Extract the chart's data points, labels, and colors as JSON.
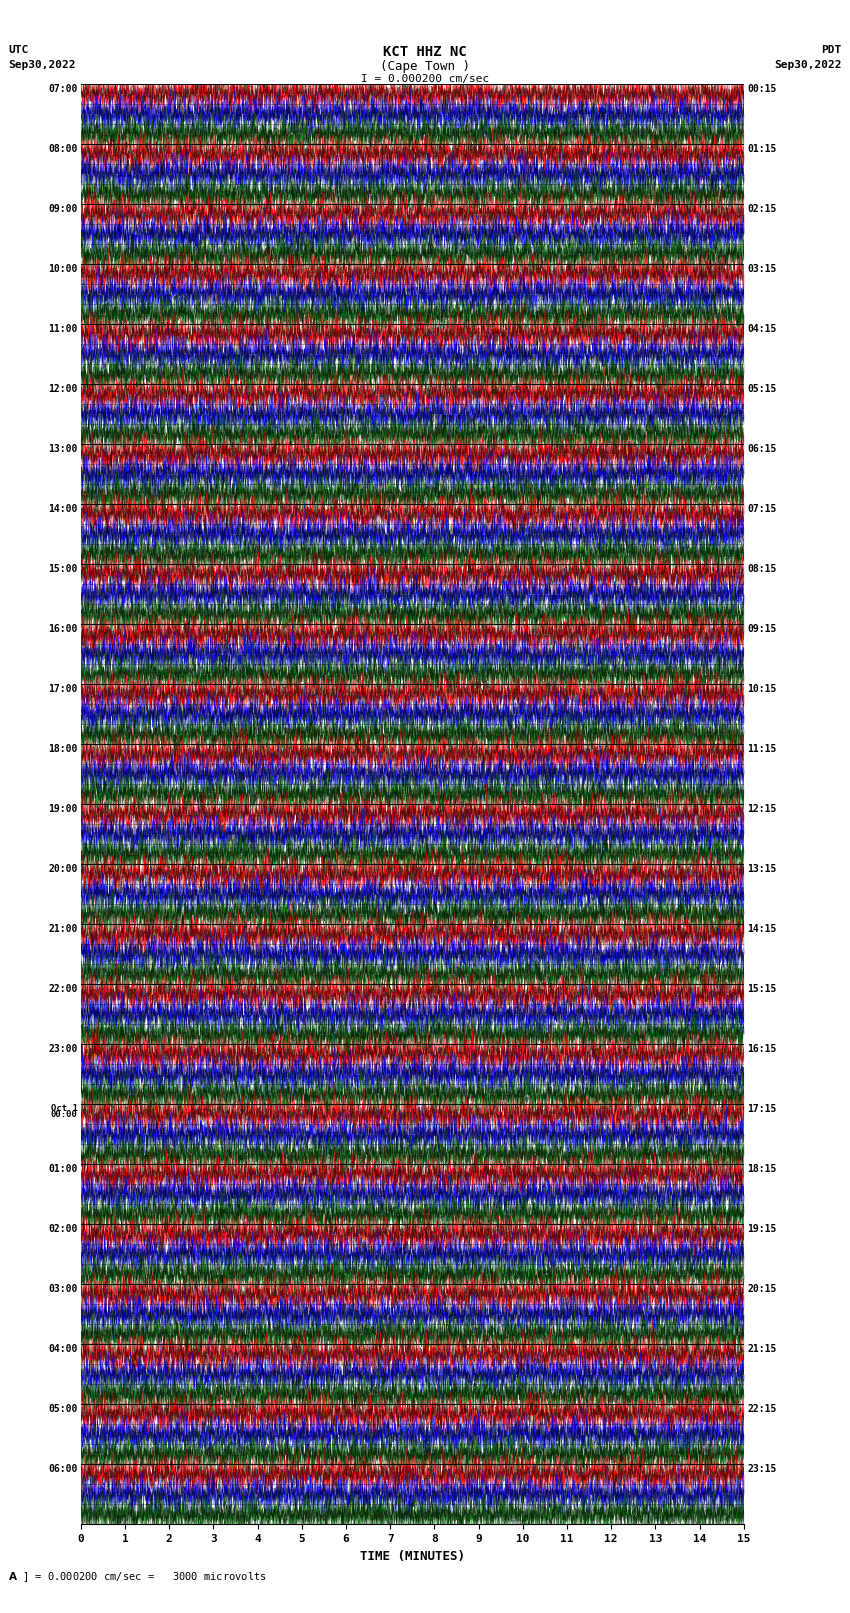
{
  "title_line1": "KCT HHZ NC",
  "title_line2": "(Cape Town )",
  "title_scale": "I = 0.000200 cm/sec",
  "left_label_line1": "UTC",
  "left_label_line2": "Sep30,2022",
  "right_label_line1": "PDT",
  "right_label_line2": "Sep30,2022",
  "bottom_label": "TIME (MINUTES)",
  "bottom_note": "= 0.000200 cm/sec =   3000 microvolts",
  "xlabel_ticks": [
    0,
    1,
    2,
    3,
    4,
    5,
    6,
    7,
    8,
    9,
    10,
    11,
    12,
    13,
    14,
    15
  ],
  "left_times": [
    "07:00",
    "08:00",
    "09:00",
    "10:00",
    "11:00",
    "12:00",
    "13:00",
    "14:00",
    "15:00",
    "16:00",
    "17:00",
    "18:00",
    "19:00",
    "20:00",
    "21:00",
    "22:00",
    "23:00",
    "Oct 1\n00:00",
    "01:00",
    "02:00",
    "03:00",
    "04:00",
    "05:00",
    "06:00"
  ],
  "right_times": [
    "00:15",
    "01:15",
    "02:15",
    "03:15",
    "04:15",
    "05:15",
    "06:15",
    "07:15",
    "08:15",
    "09:15",
    "10:15",
    "11:15",
    "12:15",
    "13:15",
    "14:15",
    "15:15",
    "16:15",
    "17:15",
    "18:15",
    "19:15",
    "20:15",
    "21:15",
    "22:15",
    "23:15"
  ],
  "num_rows": 24,
  "sub_traces_per_row": 3,
  "colors": [
    "#ff0000",
    "#0000ff",
    "#006400"
  ],
  "black_color": "#000000",
  "bg_color": "#ffffff",
  "fig_width": 8.5,
  "fig_height": 16.13,
  "dpi": 100,
  "x_min": 0,
  "x_max": 15,
  "seed": 42
}
